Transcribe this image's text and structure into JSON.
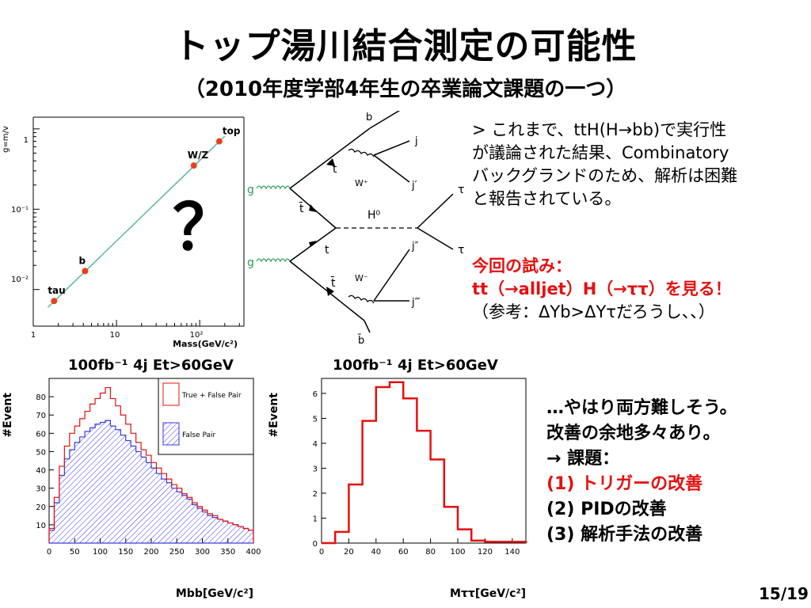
{
  "slide": {
    "title": "トップ湯川結合測定の可能性",
    "subtitle": "（2010年度学部4年生の卒業論文課題の一つ）",
    "page_number": "15/19"
  },
  "intro": {
    "lines": [
      "> これまで、ttH(H→bb)で実行性",
      "が議論された結果、Combinatory",
      "バックグランドのため、解析は困難",
      "と報告されている。"
    ]
  },
  "attempt": {
    "heading": "今回の試み：",
    "line": "tt（→alljet）H（→ττ）を見る！",
    "note": "（参考：ΔYb>ΔYτだろうし、、）"
  },
  "conclusion": {
    "lines": [
      "…やはり両方難しそう。",
      "改善の余地多々あり。",
      "→ 課題："
    ],
    "tasks": [
      {
        "label": "(1) トリガーの改善",
        "color": "#e41010"
      },
      {
        "label": "(2) PIDの改善",
        "color": "#000000"
      },
      {
        "label": "(3) 解析手法の改善",
        "color": "#000000"
      }
    ]
  },
  "question_mark": "？",
  "diagram": {
    "gluon_top": "g",
    "gluon_bottom": "g",
    "labels": [
      "b",
      "j",
      "j′",
      "t",
      "t̄",
      "H⁰",
      "W⁺",
      "W⁻",
      "t",
      "t̄",
      "j″",
      "j‴",
      "b̄",
      "τ",
      "τ"
    ]
  },
  "chart_data": [
    {
      "type": "scatter",
      "title": "",
      "xlabel": "Mass(GeV/c²)",
      "ylabel": "g=m/v",
      "x_scale": "log",
      "y_scale": "log",
      "x_tick_labels": [
        "1",
        "10",
        "10²"
      ],
      "y_tick_labels": [
        "1",
        "10⁻¹",
        "10⁻²"
      ],
      "points": [
        {
          "label": "tau",
          "x": 1.78,
          "y": 0.0072
        },
        {
          "label": "b",
          "x": 4.2,
          "y": 0.017
        },
        {
          "label": "W/Z",
          "x": 85,
          "y": 0.35
        },
        {
          "label": "top",
          "x": 172,
          "y": 0.7
        }
      ],
      "fit_line": {
        "x": [
          1.5,
          200
        ],
        "y": [
          0.006,
          0.81
        ]
      }
    },
    {
      "type": "bar",
      "header": "100fb⁻¹   4j Et>60GeV",
      "xlabel": "Mbb[GeV/c²]",
      "ylabel": "#Event",
      "xlim": [
        0,
        400
      ],
      "ylim": [
        0,
        90
      ],
      "x_tick_labels": [
        "0",
        "50",
        "100",
        "150",
        "200",
        "250",
        "300",
        "350",
        "400"
      ],
      "y_tick_labels": [
        "10",
        "20",
        "30",
        "40",
        "50",
        "60",
        "70",
        "80"
      ],
      "bin_width": 10,
      "legend": {
        "position": "top-right",
        "entries": [
          "True + False Pair",
          "False Pair"
        ]
      },
      "series": [
        {
          "name": "True + False Pair",
          "color": "#e41010",
          "values": [
            8,
            25,
            42,
            53,
            60,
            64,
            68,
            72,
            76,
            79,
            82,
            85,
            79,
            75,
            70,
            65,
            60,
            55,
            51,
            48,
            44,
            41,
            38,
            35,
            32,
            30,
            27,
            25,
            22,
            20,
            18,
            16,
            15,
            13,
            12,
            11,
            10,
            9,
            8,
            7
          ]
        },
        {
          "name": "False Pair",
          "color": "#3a3ae0",
          "values": [
            7,
            22,
            37,
            46,
            51,
            55,
            58,
            61,
            63,
            65,
            66,
            67,
            64,
            62,
            59,
            56,
            53,
            50,
            47,
            44,
            41,
            38,
            35,
            33,
            30,
            28,
            26,
            24,
            21,
            19,
            17,
            15,
            14,
            13,
            12,
            11,
            10,
            9,
            8,
            7
          ]
        }
      ]
    },
    {
      "type": "bar",
      "header": "100fb⁻¹   4j Et>60GeV",
      "xlabel": "Mττ[GeV/c²]",
      "ylabel": "#Event",
      "xlim": [
        0,
        150
      ],
      "ylim": [
        0,
        6.6
      ],
      "x_tick_labels": [
        "0",
        "20",
        "40",
        "60",
        "80",
        "100",
        "120",
        "140"
      ],
      "y_tick_labels": [
        "0",
        "1",
        "2",
        "3",
        "4",
        "5",
        "6"
      ],
      "bin_width": 10,
      "series": [
        {
          "name": "",
          "color": "#e41010",
          "values": [
            0,
            0.45,
            2.35,
            4.9,
            6.25,
            6.45,
            5.8,
            4.5,
            3.35,
            1.45,
            0.55,
            0.1,
            0.05,
            0.05,
            0.05
          ]
        }
      ]
    }
  ]
}
